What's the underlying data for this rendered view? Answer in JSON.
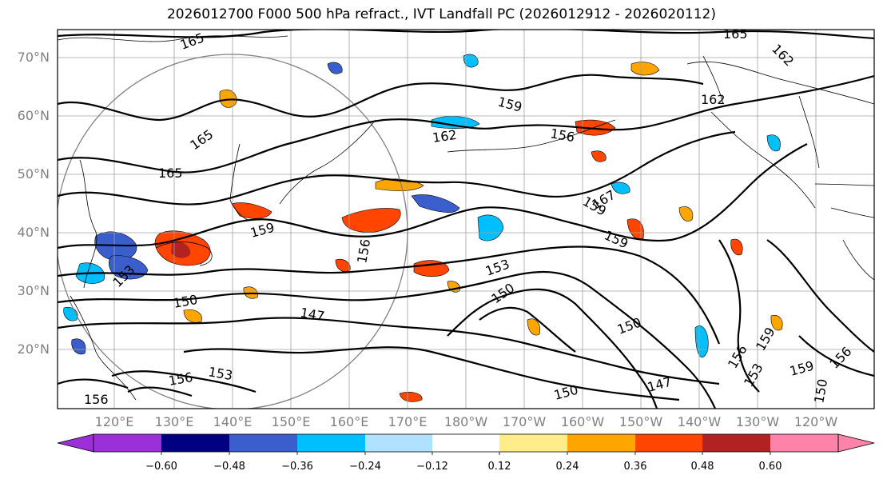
{
  "title": "2026012700 F000 500 hPa refract., IVT Landfall PC (2026012912 - 2026020112)",
  "lat_labels": [
    "70°N",
    "60°N",
    "50°N",
    "40°N",
    "30°N",
    "20°N"
  ],
  "lon_labels": [
    "120°E",
    "130°E",
    "140°E",
    "150°E",
    "160°E",
    "170°E",
    "180°W",
    "170°W",
    "160°W",
    "150°W",
    "140°W",
    "130°W",
    "120°W"
  ],
  "colorbar": {
    "ticks": [
      "−0.60",
      "−0.48",
      "−0.36",
      "−0.24",
      "−0.12",
      "0.12",
      "0.24",
      "0.36",
      "0.48",
      "0.60"
    ],
    "colors": [
      "#9b30d9",
      "#000080",
      "#3a5fcd",
      "#00bfff",
      "#b0e2ff",
      "#ffffff",
      "#ffec8b",
      "#ffa500",
      "#ff4500",
      "#b22222",
      "#ff82ab"
    ]
  },
  "contour_labels": [
    "165",
    "165",
    "162",
    "159",
    "162",
    "156",
    "162",
    "165",
    "159",
    "165",
    "153",
    "159",
    "156",
    "167",
    "159",
    "153",
    "150",
    "150",
    "147",
    "150",
    "147",
    "150",
    "153",
    "156",
    "159",
    "156",
    "156",
    "150",
    "156",
    "153",
    "159"
  ],
  "colors": {
    "contour": "#000000",
    "grid": "#a0a0a0",
    "circle": "#808080",
    "coast": "#000000"
  }
}
